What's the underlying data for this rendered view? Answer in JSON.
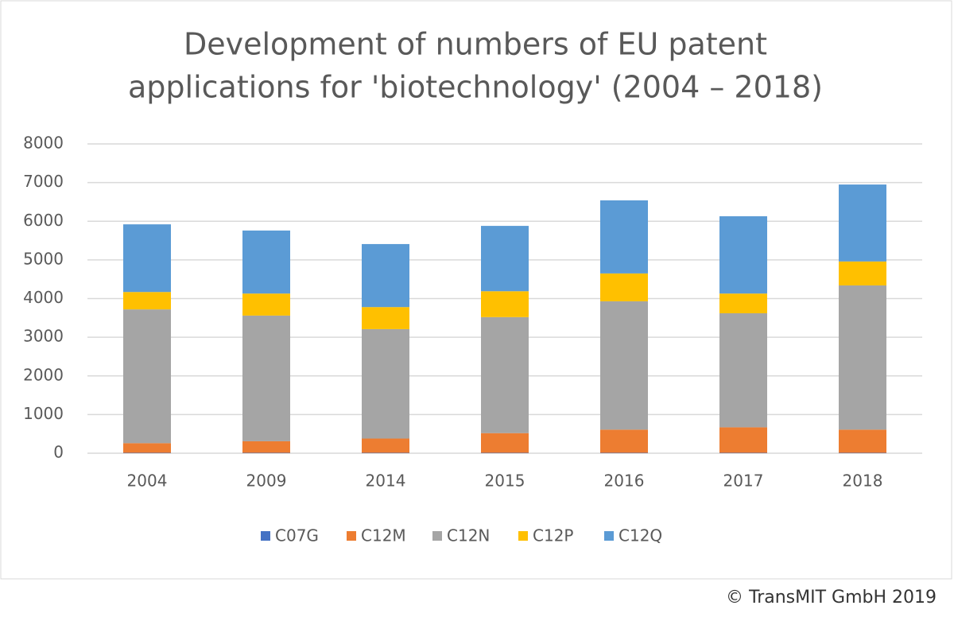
{
  "chart_data": {
    "type": "stacked_bar",
    "title": [
      "Development of numbers of EU patent",
      "applications for 'biotechnology' (2004 – 2018)"
    ],
    "categories": [
      "2004",
      "2009",
      "2014",
      "2015",
      "2016",
      "2017",
      "2018"
    ],
    "series": [
      {
        "name": "C07G",
        "color": "#4472c4",
        "values": [
          10,
          10,
          10,
          10,
          10,
          10,
          10
        ]
      },
      {
        "name": "C12M",
        "color": "#ed7d31",
        "values": [
          250,
          300,
          370,
          510,
          600,
          660,
          600
        ]
      },
      {
        "name": "C12N",
        "color": "#a5a5a5",
        "values": [
          3460,
          3250,
          2830,
          3000,
          3320,
          2950,
          3730
        ]
      },
      {
        "name": "C12P",
        "color": "#ffc000",
        "values": [
          450,
          570,
          570,
          670,
          720,
          510,
          620
        ]
      },
      {
        "name": "C12Q",
        "color": "#5b9bd5",
        "values": [
          1750,
          1630,
          1630,
          1690,
          1890,
          2000,
          1990
        ]
      }
    ],
    "ylim": [
      0,
      8000
    ],
    "yticks": [
      0,
      1000,
      2000,
      3000,
      4000,
      5000,
      6000,
      7000,
      8000
    ],
    "grid": true,
    "legend": "bottom",
    "footer": "© TransMIT GmbH 2019"
  }
}
